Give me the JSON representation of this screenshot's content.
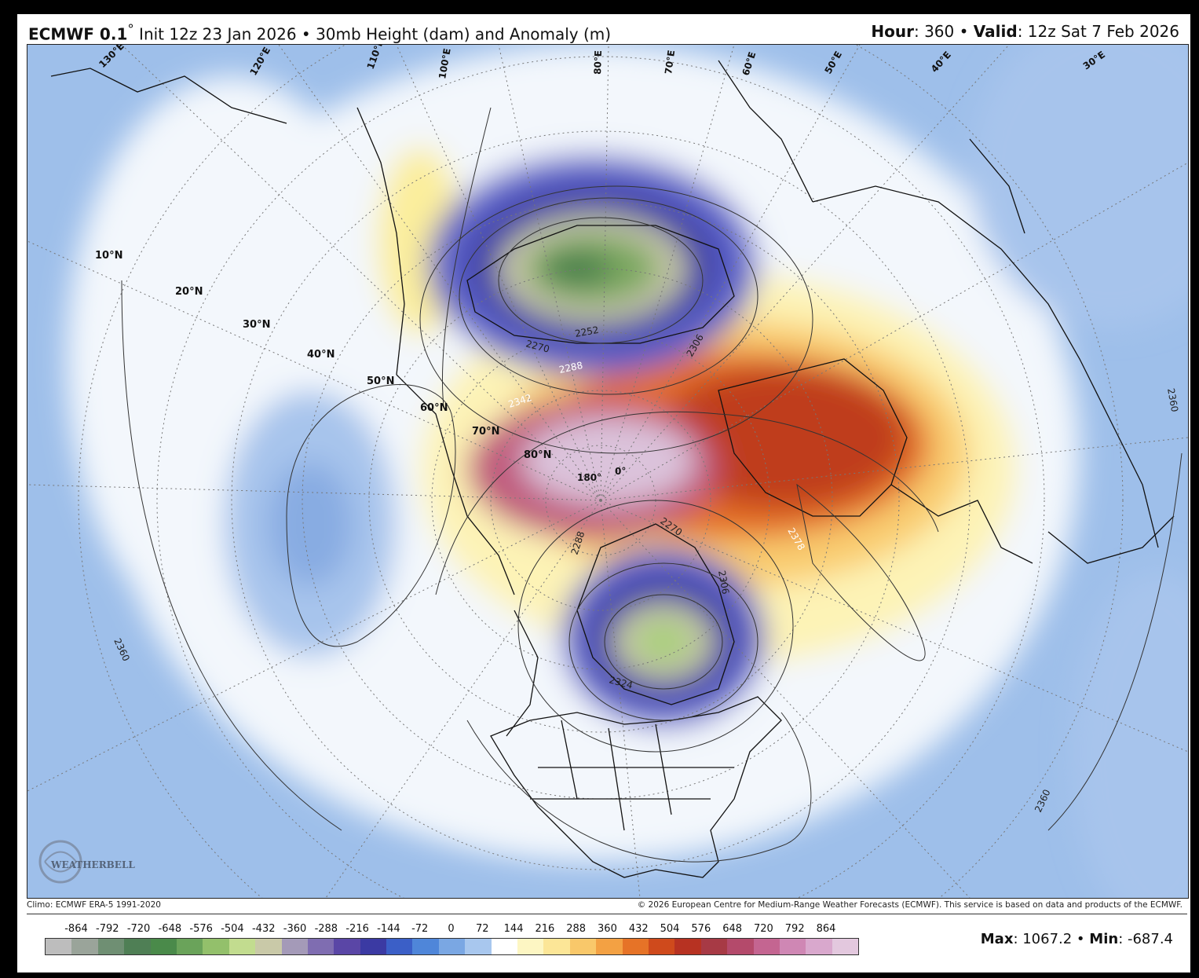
{
  "header": {
    "model": "ECMWF 0.1",
    "degree": "°",
    "init": " Init 12z 23 Jan 2026 • 30mb Height (dam) and Anomaly (m)",
    "hour_label": "Hour",
    "hour_value": ": 360 • ",
    "valid_label": "Valid",
    "valid_value": ": 12z Sat 7 Feb 2026"
  },
  "footer": {
    "climo": "Climo: ECMWF ERA-5 1991-2020",
    "copyright": "© 2026 European Centre for Medium-Range Weather Forecasts (ECMWF). This service is based on data and products of the ECMWF."
  },
  "legend": {
    "labels": [
      "-864",
      "-792",
      "-720",
      "-648",
      "-576",
      "-504",
      "-432",
      "-360",
      "-288",
      "-216",
      "-144",
      "-72",
      "0",
      "72",
      "144",
      "216",
      "288",
      "360",
      "432",
      "504",
      "576",
      "648",
      "720",
      "792",
      "864"
    ],
    "colors": [
      "#bdbdbd",
      "#9aa49a",
      "#6f8f73",
      "#4f7f55",
      "#4a8a4a",
      "#6aa35a",
      "#93c06b",
      "#c2dc8f",
      "#c9c9a8",
      "#a49ab8",
      "#7f6db1",
      "#5a46a6",
      "#3b3aa3",
      "#3b5fc7",
      "#4f86d9",
      "#7aa7e3",
      "#a8c7ee",
      "#ffffff",
      "#fdf6c3",
      "#fce697",
      "#f9c86a",
      "#f3a143",
      "#e67327",
      "#cf4a1c",
      "#b73222",
      "#a73a45",
      "#b44a6b",
      "#c46591",
      "#cf87b4",
      "#d9a8cd",
      "#e3c8de"
    ],
    "max_label": "Max",
    "max_value": ": 1067.2 • ",
    "min_label": "Min",
    "min_value": ": -687.4"
  },
  "map": {
    "lat_labels": [
      "10°N",
      "20°N",
      "30°N",
      "40°N",
      "50°N",
      "60°N",
      "70°N",
      "80°N"
    ],
    "lon_labels": [
      "130°E",
      "120°E",
      "110°E",
      "100°E",
      "80°E",
      "70°E",
      "60°E",
      "50°E",
      "40°E",
      "30°E",
      "180°",
      "0°"
    ],
    "contour_labels": [
      "2252",
      "2270",
      "2288",
      "2342",
      "2270",
      "2288",
      "2306",
      "2324",
      "2378",
      "2360",
      "2360",
      "2360",
      "2306"
    ],
    "logo": "WEATHERBELL"
  }
}
